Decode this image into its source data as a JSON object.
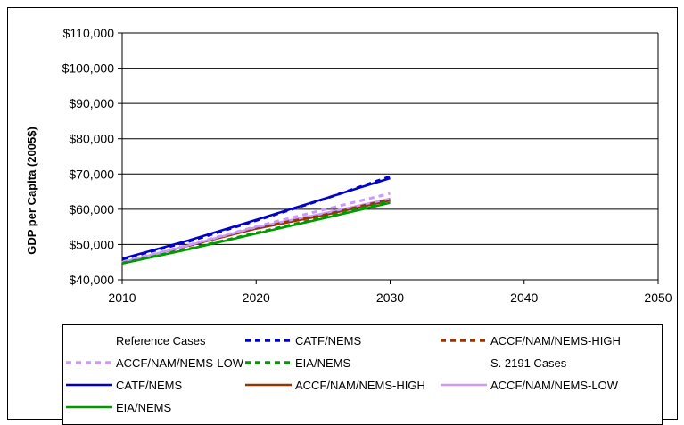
{
  "chart_data": {
    "type": "line",
    "title": "",
    "xlabel": "",
    "ylabel": "GDP per Capita (2005$)",
    "xlim": [
      2010,
      2050
    ],
    "ylim": [
      40000,
      110000
    ],
    "x_ticks": [
      2010,
      2020,
      2030,
      2040,
      2050
    ],
    "y_ticks": [
      40000,
      50000,
      60000,
      70000,
      80000,
      90000,
      100000,
      110000
    ],
    "y_tick_labels": [
      "$40,000",
      "$50,000",
      "$60,000",
      "$70,000",
      "$80,000",
      "$90,000",
      "$100,000",
      "$110,000"
    ],
    "grid": "horizontal",
    "legend_position": "bottom",
    "legend_headers": [
      "Reference Cases",
      "S. 2191 Cases"
    ],
    "series": [
      {
        "name": "CATF/NEMS",
        "group": "Reference Cases",
        "style": "dashed",
        "color": "#0000CC",
        "x": [
          2010,
          2015,
          2020,
          2025,
          2030
        ],
        "values": [
          45800,
          50900,
          56800,
          62800,
          69300
        ]
      },
      {
        "name": "ACCF/NAM/NEMS-HIGH",
        "group": "Reference Cases",
        "style": "dashed",
        "color": "#993300",
        "x": [
          2010,
          2015,
          2020,
          2025,
          2030
        ],
        "values": [
          44900,
          49700,
          54800,
          58300,
          62800
        ]
      },
      {
        "name": "ACCF/NAM/NEMS-LOW",
        "group": "Reference Cases",
        "style": "dashed",
        "color": "#CC99FF",
        "x": [
          2010,
          2015,
          2020,
          2025,
          2030
        ],
        "values": [
          44900,
          49900,
          55100,
          59800,
          64500
        ]
      },
      {
        "name": "EIA/NEMS",
        "group": "Reference Cases",
        "style": "dashed",
        "color": "#009900",
        "x": [
          2010,
          2015,
          2020,
          2025,
          2030
        ],
        "values": [
          44700,
          48800,
          53300,
          57700,
          62300
        ]
      },
      {
        "name": "CATF/NEMS",
        "group": "S. 2191 Cases",
        "style": "solid",
        "color": "#0000CC",
        "x": [
          2010,
          2015,
          2020,
          2025,
          2030
        ],
        "values": [
          46000,
          51200,
          57000,
          62900,
          68800
        ]
      },
      {
        "name": "ACCF/NAM/NEMS-HIGH",
        "group": "S. 2191 Cases",
        "style": "solid",
        "color": "#993300",
        "x": [
          2010,
          2015,
          2020,
          2025,
          2030
        ],
        "values": [
          44900,
          49700,
          54500,
          58300,
          62500
        ]
      },
      {
        "name": "ACCF/NAM/NEMS-LOW",
        "group": "S. 2191 Cases",
        "style": "solid",
        "color": "#CC99FF",
        "x": [
          2010,
          2015,
          2020,
          2025,
          2030
        ],
        "values": [
          44900,
          49800,
          54900,
          58800,
          63000
        ]
      },
      {
        "name": "EIA/NEMS",
        "group": "S. 2191 Cases",
        "style": "solid",
        "color": "#009900",
        "x": [
          2010,
          2015,
          2020,
          2025,
          2030
        ],
        "values": [
          44600,
          48700,
          53100,
          57400,
          61800
        ]
      }
    ]
  }
}
